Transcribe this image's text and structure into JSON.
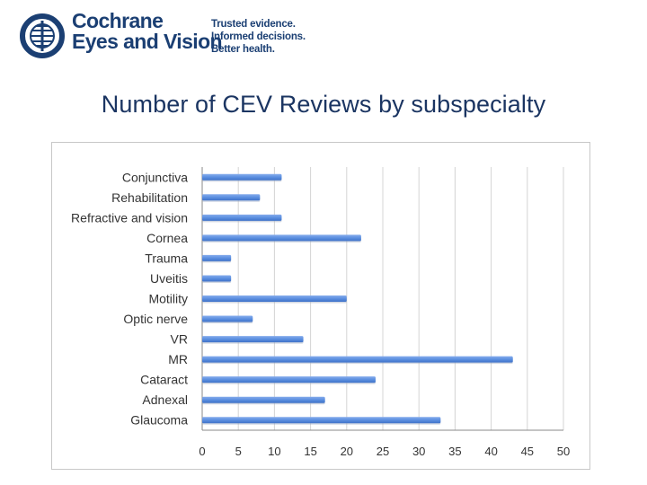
{
  "header": {
    "brand_line1": "Cochrane",
    "brand_line2": "Eyes and Vision",
    "tagline": [
      "Trusted evidence.",
      "Informed decisions.",
      "Better health."
    ],
    "brand_color": "#1b3f73",
    "logo_icon": "cochrane-logo-icon"
  },
  "page": {
    "title": "Number of CEV Reviews by subspecialty"
  },
  "chart_data": {
    "type": "bar",
    "orientation": "horizontal",
    "title": "",
    "xlabel": "",
    "ylabel": "",
    "xlim": [
      0,
      50
    ],
    "xticks": [
      0,
      5,
      10,
      15,
      20,
      25,
      30,
      35,
      40,
      45,
      50
    ],
    "categories": [
      "Conjunctiva",
      "Rehabilitation",
      "Refractive and vision",
      "Cornea",
      "Trauma",
      "Uveitis",
      "Motility",
      "Optic nerve",
      "VR",
      "MR",
      "Cataract",
      "Adnexal",
      "Glaucoma"
    ],
    "values": [
      11,
      8,
      11,
      22,
      4,
      4,
      20,
      7,
      14,
      43,
      24,
      17,
      33
    ],
    "bar_color": "#5b8fe0",
    "gridlines": true,
    "legend": "none"
  }
}
